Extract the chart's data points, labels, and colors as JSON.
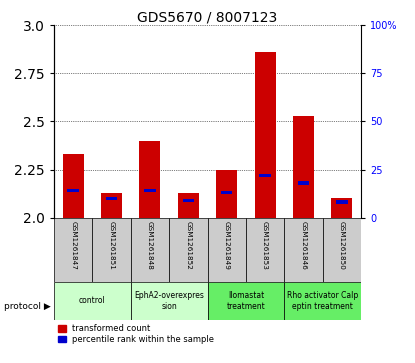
{
  "title": "GDS5670 / 8007123",
  "samples": [
    "GSM1261847",
    "GSM1261851",
    "GSM1261848",
    "GSM1261852",
    "GSM1261849",
    "GSM1261853",
    "GSM1261846",
    "GSM1261850"
  ],
  "red_values": [
    2.33,
    2.13,
    2.4,
    2.13,
    2.25,
    2.86,
    2.53,
    2.1
  ],
  "blue_values": [
    14,
    10,
    14,
    9,
    13,
    22,
    18,
    8
  ],
  "protocols": [
    {
      "label": "control",
      "samples": [
        0,
        1
      ],
      "color": "#ccffcc"
    },
    {
      "label": "EphA2-overexpres\nsion",
      "samples": [
        2,
        3
      ],
      "color": "#ccffcc"
    },
    {
      "label": "Ilomastat\ntreatment",
      "samples": [
        4,
        5
      ],
      "color": "#66ee66"
    },
    {
      "label": "Rho activator Calp\neptin treatment",
      "samples": [
        6,
        7
      ],
      "color": "#66ee66"
    }
  ],
  "ylim_left": [
    2.0,
    3.0
  ],
  "ylim_right": [
    0,
    100
  ],
  "yticks_left": [
    2.0,
    2.25,
    2.5,
    2.75,
    3.0
  ],
  "yticks_right": [
    0,
    25,
    50,
    75,
    100
  ],
  "bar_width": 0.55,
  "red_color": "#cc0000",
  "blue_color": "#0000cc",
  "title_fontsize": 10,
  "tick_fontsize": 7,
  "legend_red": "transformed count",
  "legend_blue": "percentile rank within the sample",
  "sample_bg": "#cccccc"
}
